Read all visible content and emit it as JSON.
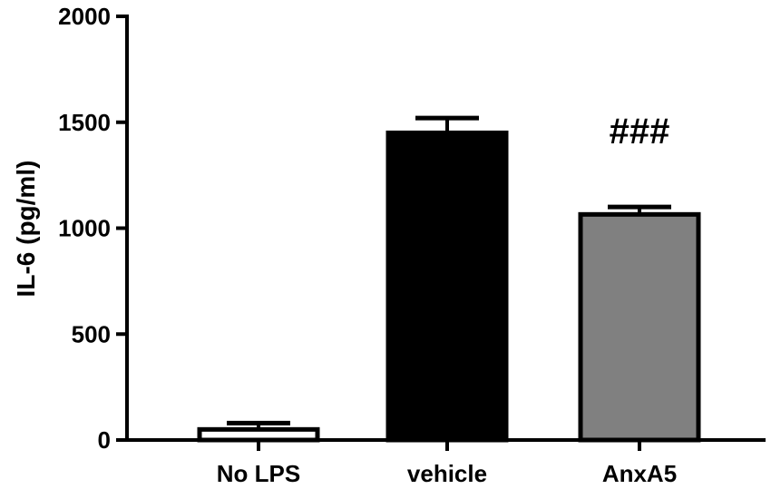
{
  "chart_data": {
    "type": "bar",
    "title": "",
    "xlabel": "",
    "ylabel": "IL-6 (pg/ml)",
    "ylim": [
      0,
      2000
    ],
    "yticks": [
      0,
      500,
      1000,
      1500,
      2000
    ],
    "ytick_labels": [
      "0",
      "500",
      "1000",
      "1500",
      "2000"
    ],
    "categories": [
      "No LPS",
      "vehicle",
      "AnxA5"
    ],
    "values": [
      50,
      1450,
      1065
    ],
    "errors": [
      30,
      70,
      35
    ],
    "bar_colors": [
      "#ffffff",
      "#000000",
      "#808080"
    ],
    "annotations": [
      "",
      "",
      "###"
    ],
    "grid": false,
    "legend": "none"
  }
}
